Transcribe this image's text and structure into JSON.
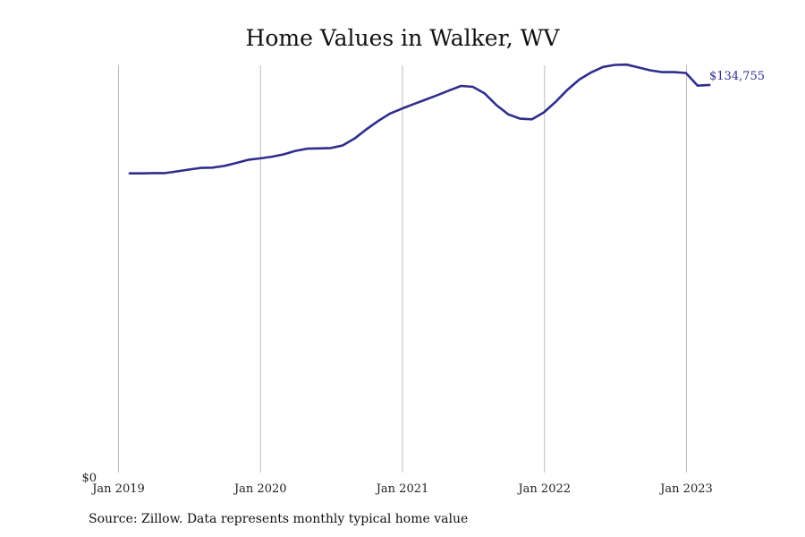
{
  "title": "Home Values in Walker, WV",
  "source": "Source: Zillow. Data represents monthly typical home value",
  "colors": {
    "line": "#2e2e8c",
    "grid": "#bdbdbd",
    "text": "#111111"
  },
  "chart_data": {
    "type": "line",
    "title": "Home Values in Walker, WV",
    "xlabel": "",
    "ylabel": "",
    "ylim": [
      0,
      140000
    ],
    "y_ticks": [
      {
        "value": 0,
        "label": "$0"
      }
    ],
    "x_ticks": [
      "Jan 2019",
      "Jan 2020",
      "Jan 2021",
      "Jan 2022",
      "Jan 2023"
    ],
    "grid": "vertical at x ticks",
    "end_label": "$134,755",
    "series": [
      {
        "x": [
          "2019-01",
          "2019-02",
          "2019-03",
          "2019-04",
          "2019-05",
          "2019-06",
          "2019-07",
          "2019-08",
          "2019-09",
          "2019-10",
          "2019-11",
          "2019-12",
          "2020-01",
          "2020-02",
          "2020-03",
          "2020-04",
          "2020-05",
          "2020-06",
          "2020-07",
          "2020-08",
          "2020-09",
          "2020-10",
          "2020-11",
          "2020-12",
          "2021-01",
          "2021-02",
          "2021-03",
          "2021-04",
          "2021-05",
          "2021-06",
          "2021-07",
          "2021-08",
          "2021-09",
          "2021-10",
          "2021-11",
          "2021-12",
          "2022-01",
          "2022-02",
          "2022-03",
          "2022-04",
          "2022-05",
          "2022-06",
          "2022-07",
          "2022-08",
          "2022-09",
          "2022-10",
          "2022-11",
          "2022-12",
          "2023-01",
          "2023-02"
        ],
        "values": [
          104000,
          104000,
          104100,
          104100,
          104700,
          105300,
          105900,
          106000,
          106600,
          107600,
          108700,
          109200,
          109800,
          110600,
          111800,
          112600,
          112700,
          112800,
          113700,
          116100,
          119300,
          122200,
          124800,
          126500,
          128100,
          129600,
          131200,
          132800,
          134400,
          134100,
          131800,
          127700,
          124500,
          123000,
          122800,
          125200,
          128900,
          133100,
          136600,
          139100,
          141000,
          141700,
          141800,
          140800,
          139800,
          139200,
          139200,
          138900,
          134500,
          134755
        ]
      }
    ]
  }
}
